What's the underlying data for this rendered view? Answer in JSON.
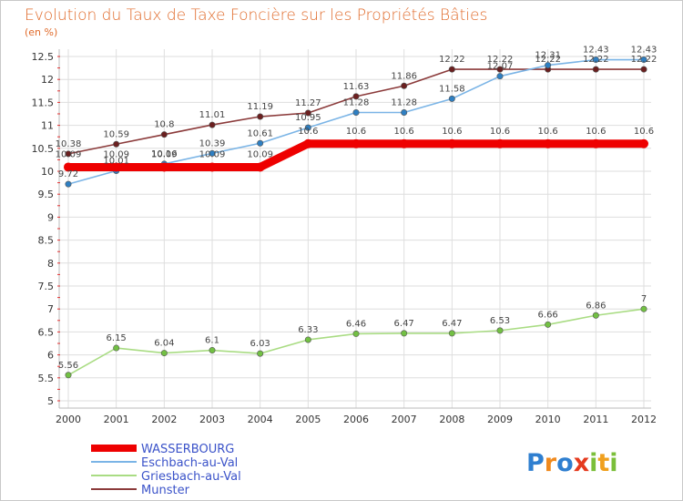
{
  "title": "Evolution du Taux de Taxe Foncière sur les Propriétés Bâties",
  "subtitle": "(en %)",
  "logo_text": "Proxiti",
  "colors": {
    "background": "#ffffff",
    "title": "#e06a2a",
    "grid": "#dcdcdc",
    "legend_text": "#3b53c9"
  },
  "chart_data": {
    "type": "line",
    "title": "Evolution du Taux de Taxe Foncière sur les Propriétés Bâties",
    "ylabel": "(en %)",
    "xlabel": "",
    "x": [
      "2000",
      "2001",
      "2002",
      "2003",
      "2004",
      "2005",
      "2006",
      "2007",
      "2008",
      "2009",
      "2010",
      "2011",
      "2012"
    ],
    "ylim": [
      5,
      12.5
    ],
    "yticks": [
      5,
      5.5,
      6,
      6.5,
      7,
      7.5,
      8,
      8.5,
      9,
      9.5,
      10,
      10.5,
      11,
      11.5,
      12,
      12.5
    ],
    "ytick_labels": [
      "5",
      "5.5",
      "6",
      "6.5",
      "7",
      "7.5",
      "8",
      "8.5",
      "9",
      "9.5",
      "10",
      "10.5",
      "11",
      "11.5",
      "12",
      "12.5"
    ],
    "grid": true,
    "legend_position": "bottom-left",
    "series": [
      {
        "name": "WASSERBOURG",
        "color": "#ee0000",
        "marker": "#ee0000",
        "width": 9,
        "values": [
          10.09,
          10.09,
          10.09,
          10.09,
          10.09,
          10.6,
          10.6,
          10.6,
          10.6,
          10.6,
          10.6,
          10.6,
          10.6
        ]
      },
      {
        "name": "Eschbach-au-Val",
        "color": "#7ab4e6",
        "marker": "#2e7fc2",
        "width": 1.6,
        "values": [
          9.72,
          10.01,
          10.16,
          10.39,
          10.61,
          10.95,
          11.28,
          11.28,
          11.58,
          12.07,
          12.31,
          12.43,
          12.43
        ]
      },
      {
        "name": "Griesbach-au-Val",
        "color": "#a9dc83",
        "marker": "#72c043",
        "width": 1.6,
        "values": [
          5.56,
          6.15,
          6.04,
          6.1,
          6.03,
          6.33,
          6.46,
          6.47,
          6.47,
          6.53,
          6.66,
          6.86,
          7
        ]
      },
      {
        "name": "Munster",
        "color": "#8b3a3a",
        "marker": "#6b1f1f",
        "width": 1.6,
        "values": [
          10.38,
          10.59,
          10.8,
          11.01,
          11.19,
          11.27,
          11.63,
          11.86,
          12.22,
          12.22,
          12.22,
          12.22,
          12.22
        ]
      }
    ]
  }
}
